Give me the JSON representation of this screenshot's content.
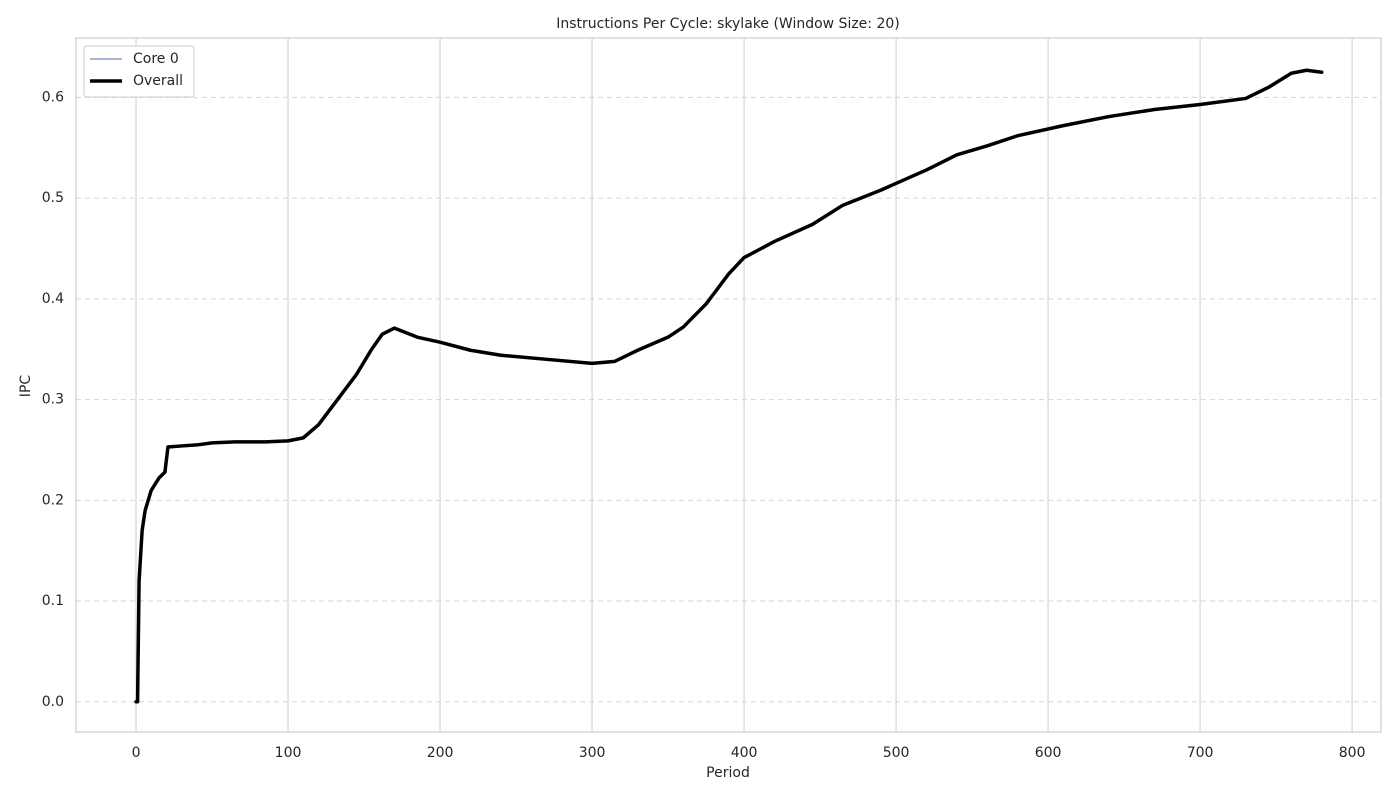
{
  "chart_data": {
    "type": "line",
    "title": "Instructions Per Cycle: skylake (Window Size: 20)",
    "x_label": "Period",
    "y_label": "IPC",
    "x": [
      0,
      1,
      2,
      4,
      6,
      10,
      15,
      19,
      21,
      30,
      40,
      50,
      65,
      85,
      100,
      110,
      120,
      130,
      145,
      155,
      162,
      170,
      185,
      200,
      220,
      240,
      270,
      300,
      315,
      330,
      350,
      360,
      375,
      390,
      400,
      420,
      445,
      465,
      490,
      520,
      540,
      560,
      580,
      610,
      640,
      670,
      700,
      730,
      745,
      760,
      770,
      780
    ],
    "series": [
      {
        "name": "Core 0",
        "color": "#4c72b0",
        "width": 1,
        "values": [
          0.0,
          0.0,
          0.12,
          0.17,
          0.19,
          0.21,
          0.222,
          0.228,
          0.253,
          0.254,
          0.255,
          0.257,
          0.258,
          0.258,
          0.259,
          0.262,
          0.275,
          0.295,
          0.325,
          0.35,
          0.365,
          0.371,
          0.362,
          0.357,
          0.349,
          0.344,
          0.34,
          0.336,
          0.338,
          0.349,
          0.362,
          0.372,
          0.395,
          0.425,
          0.441,
          0.457,
          0.474,
          0.493,
          0.508,
          0.528,
          0.543,
          0.552,
          0.562,
          0.572,
          0.581,
          0.588,
          0.593,
          0.599,
          0.61,
          0.624,
          0.627,
          0.625
        ]
      },
      {
        "name": "Overall",
        "color": "#000000",
        "width": 3.5,
        "values": [
          0.0,
          0.0,
          0.12,
          0.17,
          0.19,
          0.21,
          0.222,
          0.228,
          0.253,
          0.254,
          0.255,
          0.257,
          0.258,
          0.258,
          0.259,
          0.262,
          0.275,
          0.295,
          0.325,
          0.35,
          0.365,
          0.371,
          0.362,
          0.357,
          0.349,
          0.344,
          0.34,
          0.336,
          0.338,
          0.349,
          0.362,
          0.372,
          0.395,
          0.425,
          0.441,
          0.457,
          0.474,
          0.493,
          0.508,
          0.528,
          0.543,
          0.552,
          0.562,
          0.572,
          0.581,
          0.588,
          0.593,
          0.599,
          0.61,
          0.624,
          0.627,
          0.625
        ]
      }
    ],
    "xlim": [
      -39.5,
      819
    ],
    "ylim": [
      -0.03,
      0.659
    ],
    "xticks": [
      0,
      100,
      200,
      300,
      400,
      500,
      600,
      700,
      800
    ],
    "yticks": [
      {
        "value": 0,
        "label": "0.0"
      },
      0.1,
      0.2,
      0.3,
      0.4,
      0.5,
      0.6
    ],
    "grid": true,
    "legend": "upper-left"
  }
}
